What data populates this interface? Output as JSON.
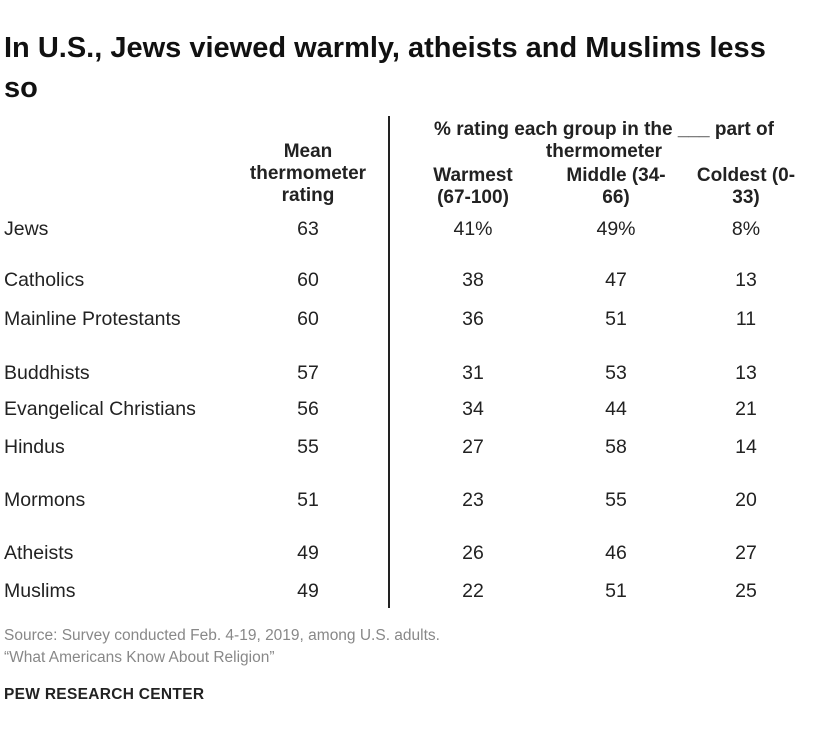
{
  "title": "In U.S., Jews viewed warmly, atheists and Muslims less so",
  "headers": {
    "mean": "Mean thermometer rating",
    "group": "% rating each group in the ___ part of thermometer",
    "warmest": "Warmest (67-100)",
    "middle": "Middle (34-66)",
    "coldest": "Coldest (0-33)"
  },
  "chart_data": {
    "type": "table",
    "columns": [
      "Mean thermometer rating",
      "Warmest (67-100)",
      "Middle (34-66)",
      "Coldest (0-33)"
    ],
    "rows": [
      {
        "label": "Jews",
        "mean": "63",
        "warmest": "41%",
        "middle": "49%",
        "coldest": "8%"
      },
      {
        "label": "Catholics",
        "mean": "60",
        "warmest": "38",
        "middle": "47",
        "coldest": "13"
      },
      {
        "label": "Mainline Protestants",
        "mean": "60",
        "warmest": "36",
        "middle": "51",
        "coldest": "11"
      },
      {
        "label": "Buddhists",
        "mean": "57",
        "warmest": "31",
        "middle": "53",
        "coldest": "13"
      },
      {
        "label": "Evangelical Christians",
        "mean": "56",
        "warmest": "34",
        "middle": "44",
        "coldest": "21"
      },
      {
        "label": "Hindus",
        "mean": "55",
        "warmest": "27",
        "middle": "58",
        "coldest": "14"
      },
      {
        "label": "Mormons",
        "mean": "51",
        "warmest": "23",
        "middle": "55",
        "coldest": "20"
      },
      {
        "label": "Atheists",
        "mean": "49",
        "warmest": "26",
        "middle": "46",
        "coldest": "27"
      },
      {
        "label": "Muslims",
        "mean": "49",
        "warmest": "22",
        "middle": "51",
        "coldest": "25"
      }
    ]
  },
  "source": {
    "line1": "Source: Survey conducted Feb. 4-19, 2019, among U.S. adults.",
    "line2": "“What Americans Know About Religion”"
  },
  "brand": "PEW RESEARCH CENTER"
}
